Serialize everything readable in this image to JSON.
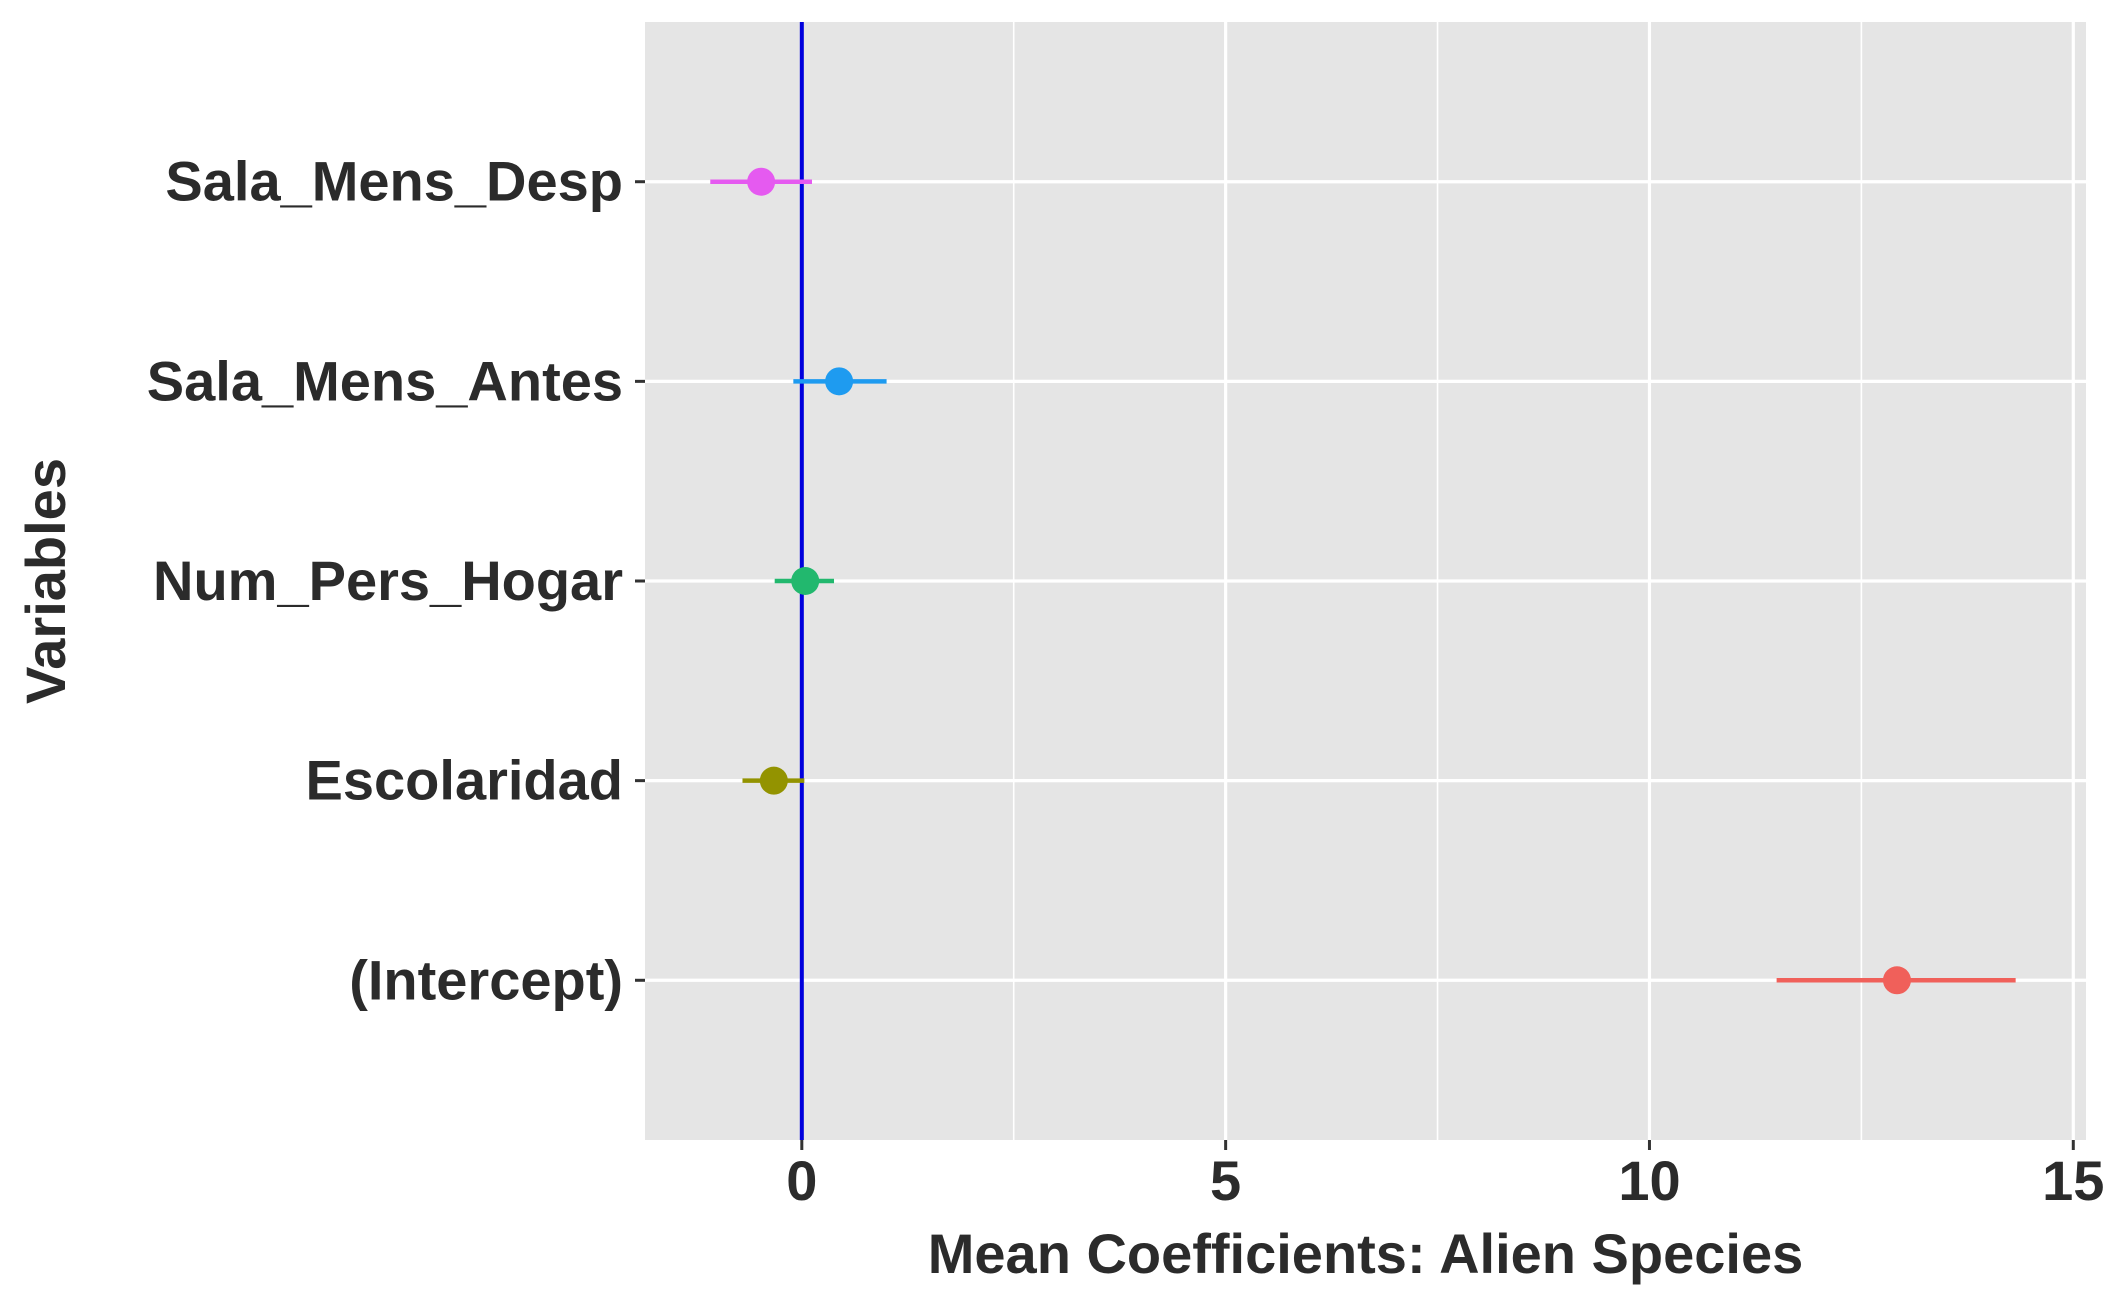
{
  "chart_data": {
    "type": "scatter",
    "subtype": "coefficient-plot",
    "xlabel": "Mean Coefficients: Alien Species",
    "ylabel": "Variables",
    "xlim": [
      -1.85,
      15.15
    ],
    "x_ticks": [
      0,
      5,
      10,
      15
    ],
    "x_tick_labels": [
      "0",
      "5",
      "10",
      "15"
    ],
    "reference_line": {
      "x": 0,
      "color": "#0000dd"
    },
    "grid": true,
    "legend": "none",
    "panel_background": "#e5e5e5",
    "categories": [
      "Sala_Mens_Desp",
      "Sala_Mens_Antes",
      "Num_Pers_Hogar",
      "Escolaridad",
      "(Intercept)"
    ],
    "points": [
      {
        "variable": "Sala_Mens_Desp",
        "estimate": -0.48,
        "lower": -1.08,
        "upper": 0.12,
        "color": "#e55af0"
      },
      {
        "variable": "Sala_Mens_Antes",
        "estimate": 0.44,
        "lower": -0.1,
        "upper": 1.0,
        "color": "#1e9bf0"
      },
      {
        "variable": "Num_Pers_Hogar",
        "estimate": 0.04,
        "lower": -0.32,
        "upper": 0.38,
        "color": "#22b86e"
      },
      {
        "variable": "Escolaridad",
        "estimate": -0.33,
        "lower": -0.7,
        "upper": 0.03,
        "color": "#939300"
      },
      {
        "variable": "(Intercept)",
        "estimate": 12.92,
        "lower": 11.5,
        "upper": 14.32,
        "color": "#f0605a"
      }
    ]
  }
}
